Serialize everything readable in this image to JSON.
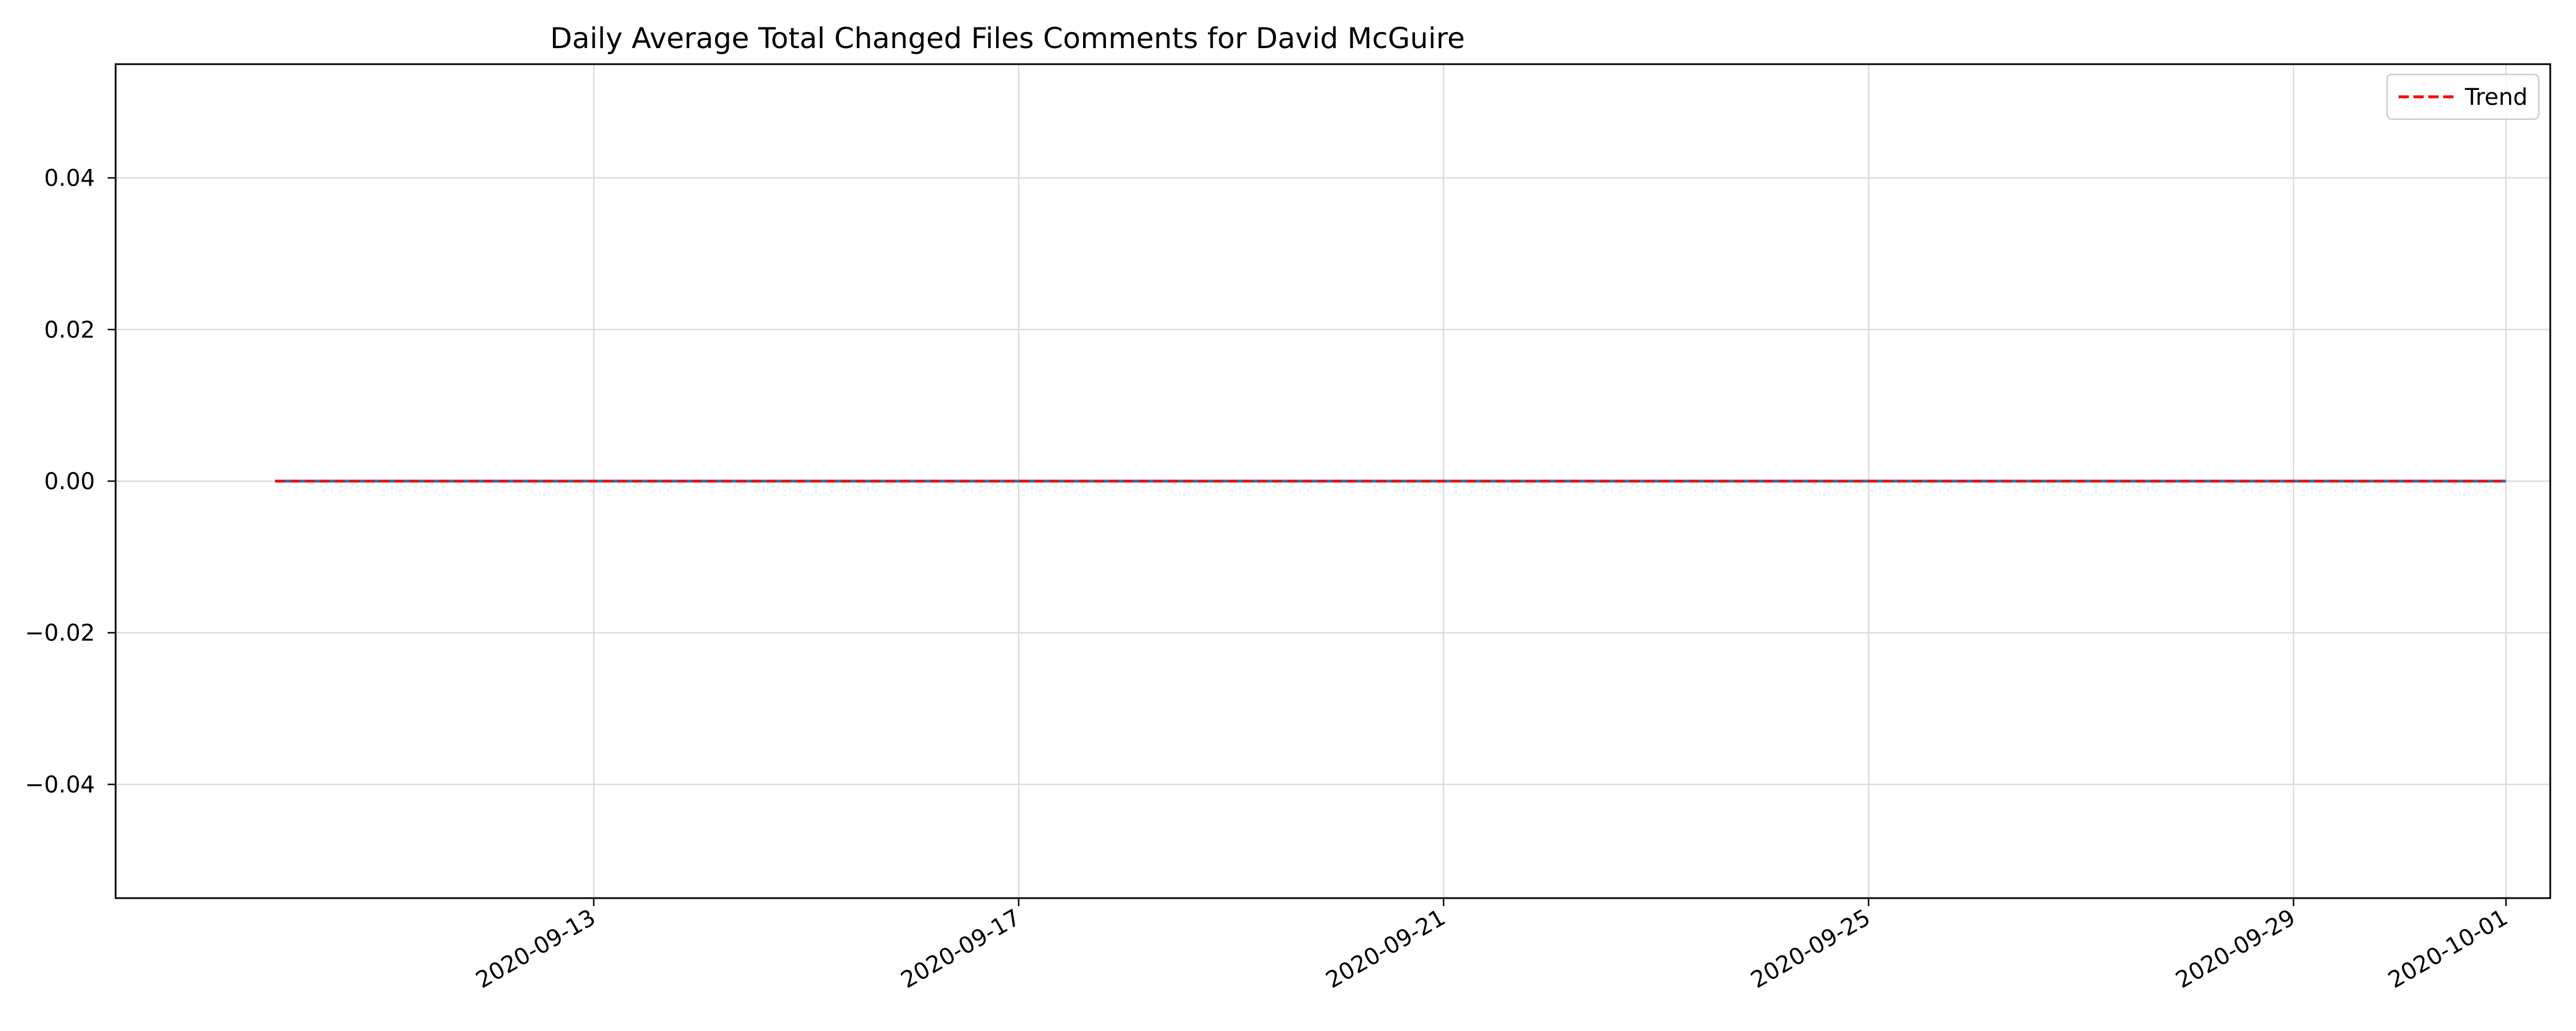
{
  "chart_data": {
    "type": "line",
    "title": "Daily Average Total Changed Files Comments for David McGuire",
    "xlabel": "",
    "ylabel": "",
    "x_is_date": true,
    "xlim": [
      "2020-09-08T12:00",
      "2020-10-01T10:00"
    ],
    "ylim": [
      -0.055,
      0.055
    ],
    "x_ticks": [
      "2020-09-13",
      "2020-09-17",
      "2020-09-21",
      "2020-09-25",
      "2020-09-29",
      "2020-10-01"
    ],
    "y_ticks": [
      -0.04,
      -0.02,
      0.0,
      0.02,
      0.04
    ],
    "y_tick_labels": [
      "−0.04",
      "−0.02",
      "0.00",
      "0.02",
      "0.04"
    ],
    "grid": true,
    "legend_position": "top-right",
    "series": [
      {
        "x": [
          "2020-09-10",
          "2020-09-11",
          "2020-09-12",
          "2020-09-13",
          "2020-09-14",
          "2020-09-15",
          "2020-09-16",
          "2020-09-17",
          "2020-09-18",
          "2020-09-19",
          "2020-09-20",
          "2020-09-21",
          "2020-09-22",
          "2020-09-23",
          "2020-09-24",
          "2020-09-25",
          "2020-09-26",
          "2020-09-27",
          "2020-09-28",
          "2020-09-29",
          "2020-09-30",
          "2020-10-01"
        ],
        "values": [
          0,
          0,
          0,
          0,
          0,
          0,
          0,
          0,
          0,
          0,
          0,
          0,
          0,
          0,
          0,
          0,
          0,
          0,
          0,
          0,
          0,
          0
        ],
        "color": "#1f77b4",
        "line_style": "solid"
      },
      {
        "name": "Trend",
        "x": [
          "2020-09-10",
          "2020-10-01"
        ],
        "values": [
          0,
          0
        ],
        "color": "#ff0000",
        "line_style": "dashed"
      }
    ]
  }
}
